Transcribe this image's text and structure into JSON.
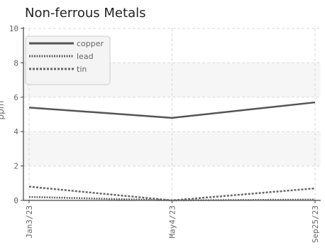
{
  "title": "Non-ferrous Metals",
  "chart_data": {
    "type": "line",
    "title": "Non-ferrous Metals",
    "xlabel": "",
    "ylabel": "ppm",
    "categories": [
      "Jan3/23",
      "May4/23",
      "Sep25/23"
    ],
    "ylim": [
      0,
      10
    ],
    "yticks": [
      0,
      2,
      4,
      6,
      8,
      10
    ],
    "grid": true,
    "legend_position": "top-left",
    "series": [
      {
        "name": "copper",
        "values": [
          5.4,
          4.8,
          5.7
        ],
        "color": "#555555",
        "style": "solid"
      },
      {
        "name": "lead",
        "values": [
          0.2,
          0.0,
          0.05
        ],
        "color": "#666666",
        "style": "dotted"
      },
      {
        "name": "tin",
        "values": [
          0.8,
          0.0,
          0.7
        ],
        "color": "#666666",
        "style": "dashed"
      }
    ]
  }
}
